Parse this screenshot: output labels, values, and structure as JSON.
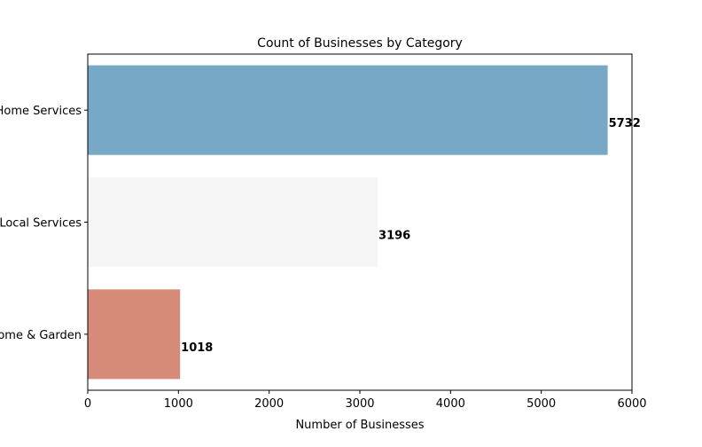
{
  "chart_data": {
    "type": "bar",
    "orientation": "horizontal",
    "title": "Count of Businesses by Category",
    "xlabel": "Number of Businesses",
    "ylabel": "",
    "categories": [
      "Home Services",
      "Local Services",
      "Home & Garden"
    ],
    "values": [
      5732,
      3196,
      1018
    ],
    "value_labels": [
      "5732",
      "3196",
      "1018"
    ],
    "xlim": [
      0,
      6000
    ],
    "xticks": [
      0,
      1000,
      2000,
      3000,
      4000,
      5000,
      6000
    ],
    "xtick_labels": [
      "0",
      "1000",
      "2000",
      "3000",
      "4000",
      "5000",
      "6000"
    ],
    "grid": false,
    "legend": "none",
    "bar_colors": [
      "#77a9c7",
      "#f5f5f5",
      "#d68b79"
    ]
  }
}
